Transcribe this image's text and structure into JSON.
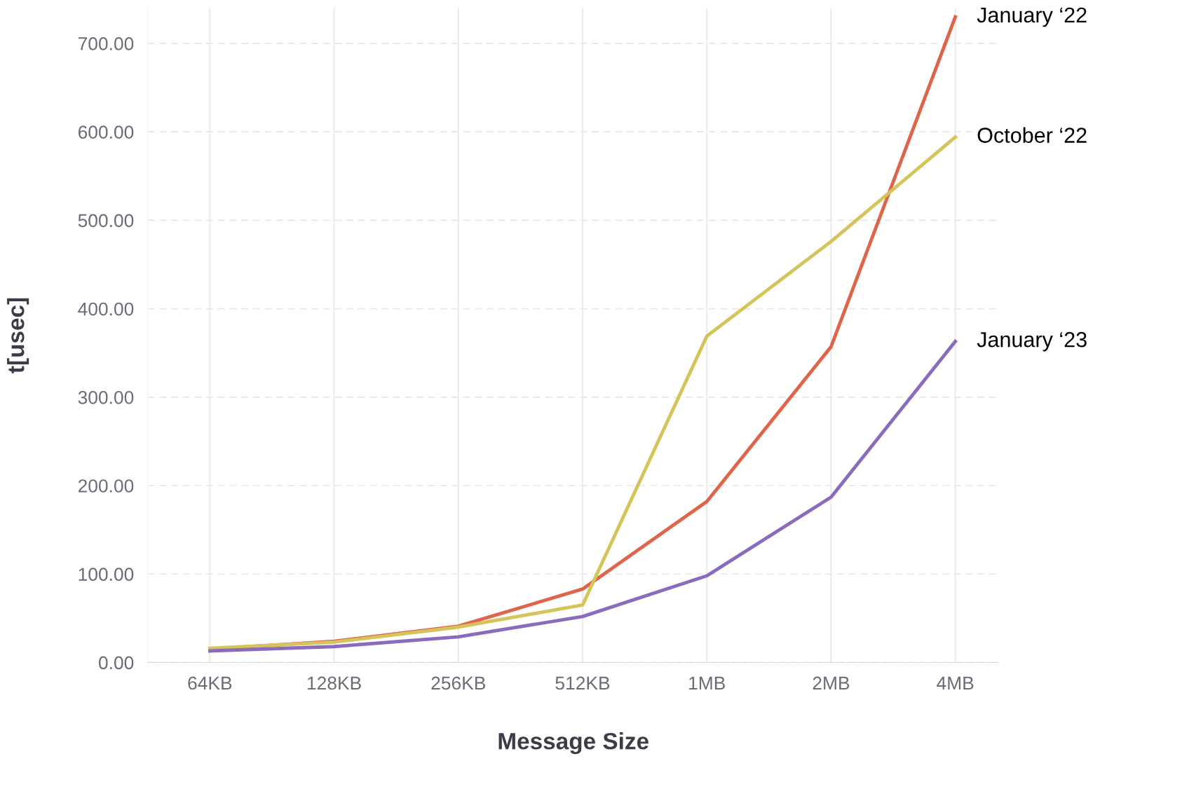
{
  "chart_data": {
    "type": "line",
    "xlabel": "Message Size",
    "ylabel": "t[usec]",
    "categories": [
      "64KB",
      "128KB",
      "256KB",
      "512KB",
      "1MB",
      "2MB",
      "4MB"
    ],
    "series": [
      {
        "name": "January ‘22",
        "color": "#e0644a",
        "values": [
          15,
          24,
          41,
          83,
          182,
          357,
          730
        ]
      },
      {
        "name": "October ‘22",
        "color": "#d4c45a",
        "values": [
          16,
          23,
          40,
          65,
          369,
          476,
          594
        ]
      },
      {
        "name": "January ‘23",
        "color": "#8a6bbd",
        "values": [
          13,
          18,
          29,
          52,
          98,
          187,
          363
        ]
      }
    ],
    "ylim": [
      0,
      740
    ],
    "yticks": [
      {
        "value": 0,
        "label": "0.00"
      },
      {
        "value": 100,
        "label": "100.00"
      },
      {
        "value": 200,
        "label": "200.00"
      },
      {
        "value": 300,
        "label": "300.00"
      },
      {
        "value": 400,
        "label": "400.00"
      },
      {
        "value": 500,
        "label": "500.00"
      },
      {
        "value": 600,
        "label": "600.00"
      },
      {
        "value": 700,
        "label": "700.00"
      }
    ],
    "grid": true,
    "legend": false,
    "marker": "none",
    "line_style": "solid"
  }
}
